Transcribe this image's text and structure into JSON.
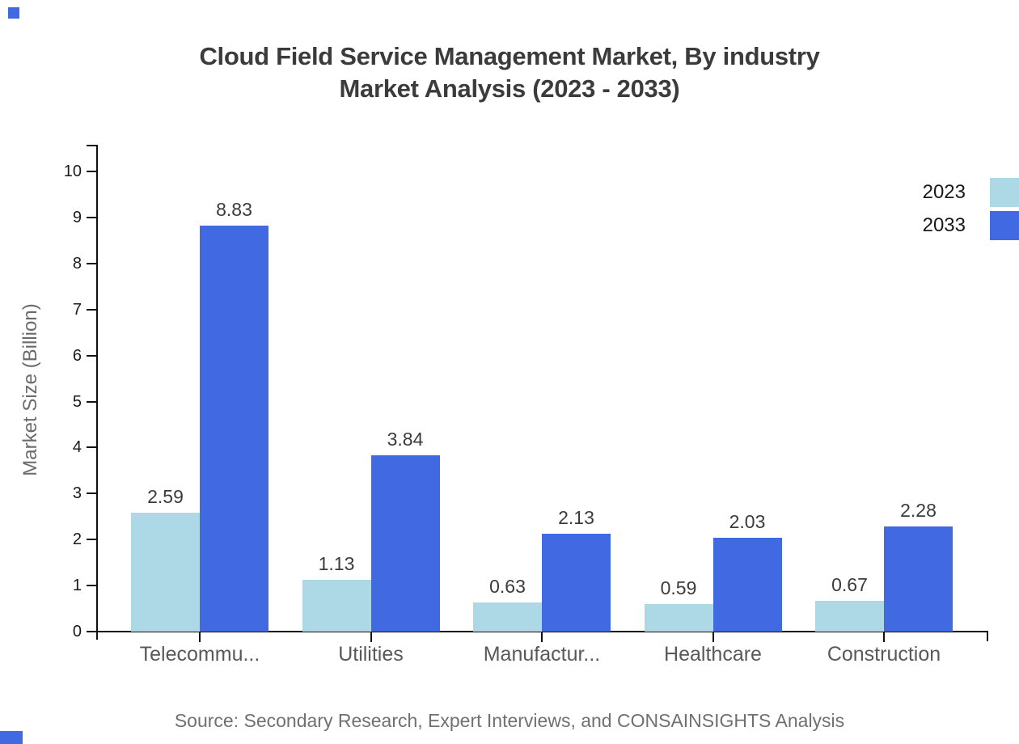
{
  "title": {
    "line1": "Cloud Field Service Management Market, By industry",
    "line2": "Market Analysis (2023 - 2033)"
  },
  "source_note": "Source: Secondary Research, Expert Interviews, and CONSAINSIGHTS Analysis",
  "chart_data": {
    "type": "bar",
    "title": "Cloud Field Service Management Market, By industry Market Analysis (2023 - 2033)",
    "categories": [
      "Telecommu...",
      "Utilities",
      "Manufactur...",
      "Healthcare",
      "Construction"
    ],
    "series": [
      {
        "name": "2023",
        "color": "#ADD8E6",
        "values": [
          2.59,
          1.13,
          0.63,
          0.59,
          0.67
        ]
      },
      {
        "name": "2033",
        "color": "#4169E1",
        "values": [
          8.83,
          3.84,
          2.13,
          2.03,
          2.28
        ]
      }
    ],
    "xlabel": "",
    "ylabel": "Market Size (Billion)",
    "ylim": [
      0,
      10
    ],
    "yticks": [
      0,
      1,
      2,
      3,
      4,
      5,
      6,
      7,
      8,
      9,
      10
    ],
    "grid": false,
    "legend_position": "top-right",
    "value_labels": true,
    "value_label_format": "0.00"
  },
  "colors": {
    "axis": "#111111",
    "title_text": "#3b3b3b",
    "tick_text": "#1a1a1a",
    "category_text": "#595959",
    "muted_text": "#6b6b6b",
    "source_text": "#707070",
    "accent_mark": "#4169E1",
    "background": "#ffffff"
  }
}
